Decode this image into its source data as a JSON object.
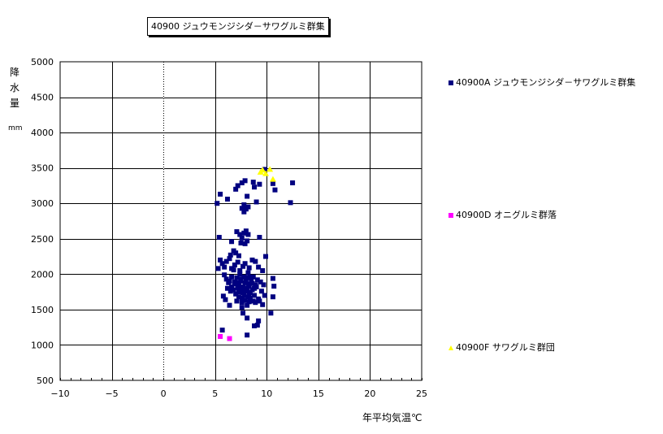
{
  "chart_data": {
    "type": "scatter",
    "title": "40900 ジュウモンジシダ－サワグルミ群集",
    "xlabel": "年平均気温℃",
    "ylabel": "降水量",
    "yunit": "mm",
    "xlim": [
      -10,
      25
    ],
    "ylim": [
      500,
      5000
    ],
    "xticks": [
      -10,
      -5,
      0,
      5,
      10,
      15,
      20,
      25
    ],
    "yticks": [
      500,
      1000,
      1500,
      2000,
      2500,
      3000,
      3500,
      4000,
      4500,
      5000
    ],
    "grid": true,
    "legend_position": "right",
    "series": [
      {
        "name": "40900A ジュウモンジシダ－サワグルミ群集",
        "marker": "square",
        "color": "#000080",
        "points": [
          [
            5.2,
            3000
          ],
          [
            5.5,
            3130
          ],
          [
            6.2,
            3060
          ],
          [
            7.0,
            3200
          ],
          [
            7.2,
            3250
          ],
          [
            7.6,
            3290
          ],
          [
            7.9,
            3320
          ],
          [
            8.1,
            3100
          ],
          [
            7.8,
            2980
          ],
          [
            7.6,
            2930
          ],
          [
            7.8,
            2880
          ],
          [
            8.0,
            2920
          ],
          [
            8.2,
            2950
          ],
          [
            8.8,
            3230
          ],
          [
            8.7,
            3300
          ],
          [
            9.0,
            3020
          ],
          [
            9.3,
            3270
          ],
          [
            9.8,
            3480
          ],
          [
            10.6,
            3280
          ],
          [
            10.8,
            3190
          ],
          [
            12.3,
            3010
          ],
          [
            12.5,
            3290
          ],
          [
            5.4,
            2520
          ],
          [
            6.6,
            2460
          ],
          [
            7.1,
            2600
          ],
          [
            7.4,
            2560
          ],
          [
            7.6,
            2510
          ],
          [
            7.8,
            2580
          ],
          [
            8.0,
            2610
          ],
          [
            8.2,
            2560
          ],
          [
            7.5,
            2440
          ],
          [
            7.9,
            2430
          ],
          [
            8.1,
            2470
          ],
          [
            9.3,
            2520
          ],
          [
            6.5,
            2270
          ],
          [
            6.8,
            2330
          ],
          [
            7.0,
            2300
          ],
          [
            7.3,
            2260
          ],
          [
            9.9,
            2250
          ],
          [
            5.5,
            2200
          ],
          [
            5.7,
            2150
          ],
          [
            5.9,
            2100
          ],
          [
            6.1,
            2180
          ],
          [
            6.4,
            2220
          ],
          [
            6.6,
            2080
          ],
          [
            6.9,
            2130
          ],
          [
            7.2,
            2170
          ],
          [
            7.4,
            2050
          ],
          [
            7.7,
            2110
          ],
          [
            7.9,
            2150
          ],
          [
            8.3,
            2090
          ],
          [
            8.6,
            2200
          ],
          [
            8.9,
            2180
          ],
          [
            9.2,
            2100
          ],
          [
            9.6,
            2050
          ],
          [
            5.3,
            2080
          ],
          [
            5.9,
            1990
          ],
          [
            6.1,
            1930
          ],
          [
            6.4,
            1900
          ],
          [
            6.6,
            1960
          ],
          [
            6.9,
            1890
          ],
          [
            7.1,
            1950
          ],
          [
            7.3,
            1850
          ],
          [
            7.5,
            1900
          ],
          [
            7.7,
            1820
          ],
          [
            7.9,
            1880
          ],
          [
            8.1,
            1950
          ],
          [
            8.3,
            1830
          ],
          [
            8.5,
            1900
          ],
          [
            8.7,
            1960
          ],
          [
            8.9,
            1850
          ],
          [
            9.1,
            1920
          ],
          [
            9.4,
            1890
          ],
          [
            9.7,
            1850
          ],
          [
            10.6,
            1940
          ],
          [
            10.7,
            1830
          ],
          [
            6.2,
            1800
          ],
          [
            6.5,
            1760
          ],
          [
            6.8,
            1780
          ],
          [
            7.0,
            1720
          ],
          [
            7.2,
            1810
          ],
          [
            7.4,
            1750
          ],
          [
            7.6,
            1790
          ],
          [
            7.8,
            1700
          ],
          [
            8.0,
            1760
          ],
          [
            8.2,
            1680
          ],
          [
            8.4,
            1740
          ],
          [
            8.6,
            1780
          ],
          [
            8.8,
            1700
          ],
          [
            9.0,
            1820
          ],
          [
            9.2,
            1650
          ],
          [
            9.5,
            1760
          ],
          [
            9.8,
            1700
          ],
          [
            5.8,
            1690
          ],
          [
            6.0,
            1640
          ],
          [
            7.1,
            1620
          ],
          [
            7.3,
            1680
          ],
          [
            7.6,
            1600
          ],
          [
            7.9,
            1630
          ],
          [
            8.1,
            1560
          ],
          [
            8.3,
            1610
          ],
          [
            8.7,
            1620
          ],
          [
            8.9,
            1600
          ],
          [
            9.3,
            1620
          ],
          [
            9.6,
            1570
          ],
          [
            10.6,
            1680
          ],
          [
            6.4,
            1560
          ],
          [
            7.6,
            1530
          ],
          [
            7.7,
            1450
          ],
          [
            8.1,
            1380
          ],
          [
            8.8,
            1270
          ],
          [
            9.1,
            1280
          ],
          [
            9.2,
            1340
          ],
          [
            10.4,
            1450
          ],
          [
            5.7,
            1210
          ],
          [
            8.1,
            1140
          ],
          [
            6.3,
            1880
          ],
          [
            6.6,
            1820
          ],
          [
            6.9,
            1860
          ],
          [
            7.2,
            1880
          ],
          [
            7.5,
            1930
          ],
          [
            7.8,
            1960
          ],
          [
            8.0,
            1900
          ],
          [
            8.2,
            1860
          ],
          [
            8.4,
            1960
          ],
          [
            8.6,
            1870
          ],
          [
            8.8,
            1800
          ],
          [
            7.3,
            1770
          ],
          [
            7.7,
            1740
          ],
          [
            8.1,
            1800
          ],
          [
            8.3,
            1720
          ],
          [
            7.6,
            1660
          ],
          [
            8.4,
            1660
          ],
          [
            7.4,
            2000
          ],
          [
            8.2,
            2020
          ],
          [
            6.8,
            2060
          ]
        ]
      },
      {
        "name": "40900D オニグルミ群落",
        "marker": "square",
        "color": "#ff00ff",
        "points": [
          [
            5.5,
            1120
          ],
          [
            6.4,
            1090
          ]
        ]
      },
      {
        "name": "40900F サワグルミ群団",
        "marker": "triangle",
        "color": "#ffff00",
        "points": [
          [
            9.4,
            3440
          ],
          [
            9.6,
            3470
          ],
          [
            9.9,
            3420
          ],
          [
            10.3,
            3480
          ],
          [
            10.6,
            3340
          ]
        ]
      }
    ]
  }
}
